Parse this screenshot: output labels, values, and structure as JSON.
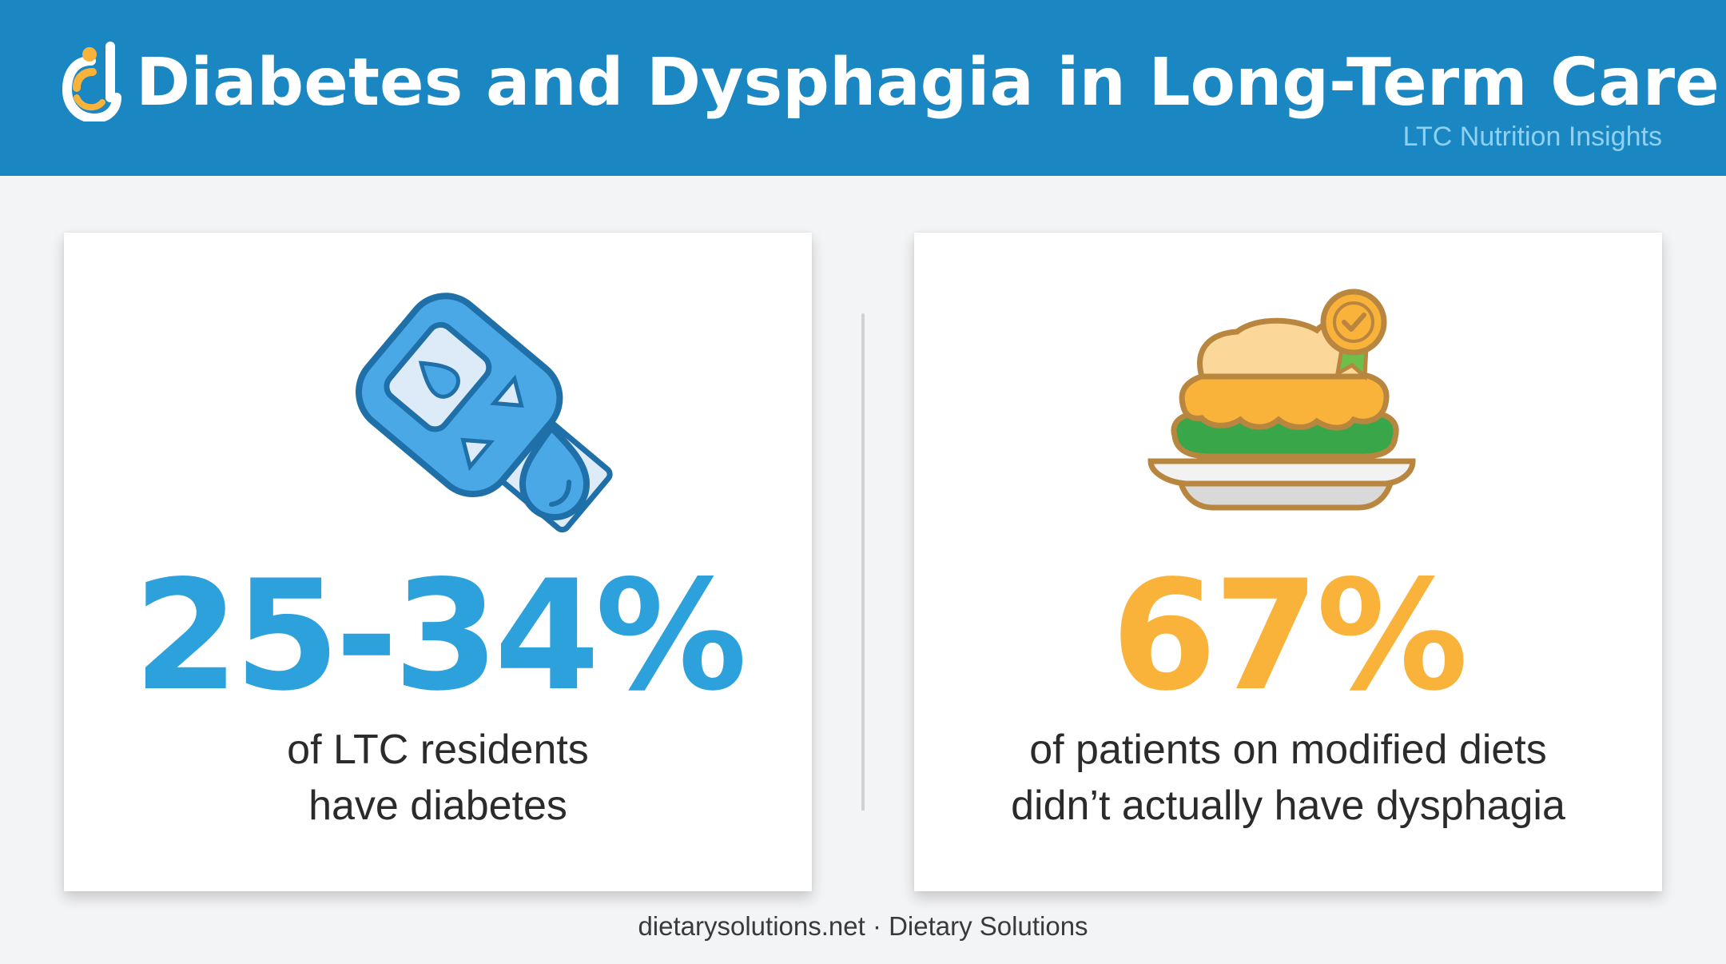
{
  "header": {
    "title": "Diabetes and Dysphagia in Long-Term Care",
    "subtitle": "LTC Nutrition Insights",
    "logo_icon": "dietary-solutions-logo"
  },
  "cards": [
    {
      "icon": "glucose-meter-icon",
      "stat": "25-34%",
      "desc_line1": "of LTC residents",
      "desc_line2": "have diabetes",
      "accent": "#2da1dc"
    },
    {
      "icon": "pureed-meal-plate-icon",
      "stat": "67%",
      "desc_line1": "of patients on modified diets",
      "desc_line2": "didn’t actually have dysphagia",
      "accent": "#f9b23a"
    }
  ],
  "footer": {
    "text": "dietarysolutions.net · Dietary Solutions"
  },
  "colors": {
    "header_bg": "#1a86c2",
    "page_bg": "#f3f4f5",
    "blue_accent": "#2da1dc",
    "orange_accent": "#f9b23a"
  }
}
